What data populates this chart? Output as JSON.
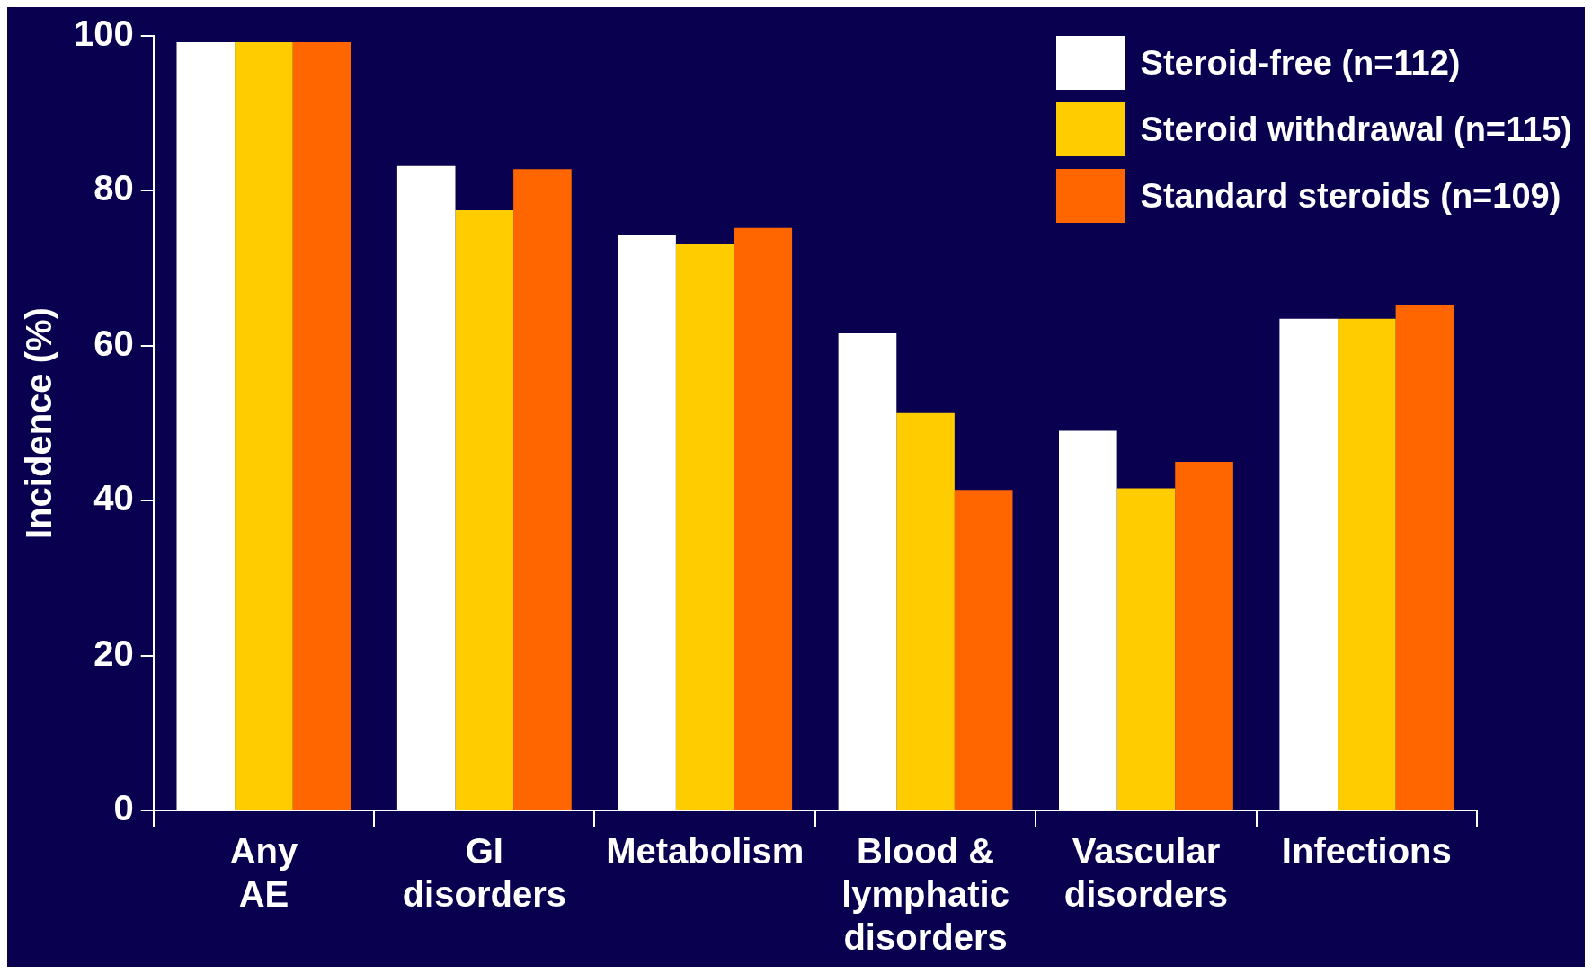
{
  "chart_data": {
    "type": "bar",
    "ylabel": "Incidence (%)",
    "categories": [
      "Any\nAE",
      "GI\ndisorders",
      "Metabolism",
      "Blood &\nlymphatic\ndisorders",
      "Vascular\ndisorders",
      "Infections"
    ],
    "series": [
      {
        "name": "Steroid-free (n=112)",
        "color": "#ffffff",
        "values": [
          99.2,
          83.2,
          74.3,
          61.6,
          49,
          63.5
        ]
      },
      {
        "name": "Steroid withdrawal (n=115)",
        "color": "#ffcc00",
        "values": [
          99.2,
          77.5,
          73.2,
          51.3,
          41.6,
          63.5
        ]
      },
      {
        "name": "Standard steroids (n=109)",
        "color": "#ff6600",
        "values": [
          99.2,
          82.8,
          75.2,
          41.4,
          45,
          65.2
        ]
      }
    ],
    "ylim": [
      0,
      100
    ],
    "yticks": [
      0,
      20,
      40,
      60,
      80,
      100
    ],
    "grid": false,
    "legend": "top right"
  }
}
